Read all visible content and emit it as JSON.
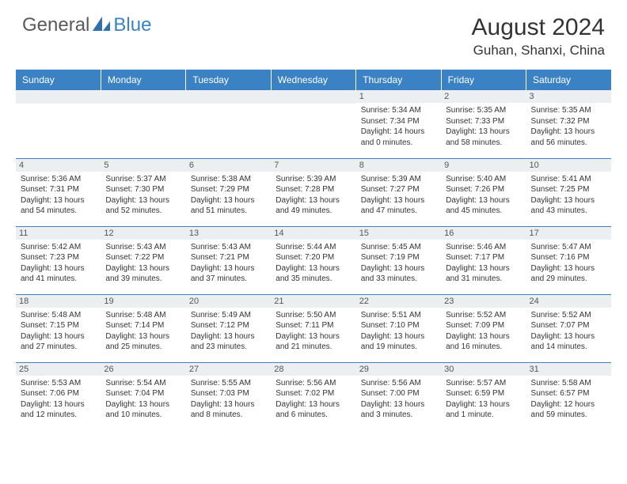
{
  "brand": {
    "general": "General",
    "blue": "Blue"
  },
  "title": "August 2024",
  "location": "Guhan, Shanxi, China",
  "header_bg": "#3b82c4",
  "weekdays": [
    "Sunday",
    "Monday",
    "Tuesday",
    "Wednesday",
    "Thursday",
    "Friday",
    "Saturday"
  ],
  "weeks": [
    [
      null,
      null,
      null,
      null,
      {
        "n": "1",
        "sr": "5:34 AM",
        "ss": "7:34 PM",
        "dl": "14 hours and 0 minutes."
      },
      {
        "n": "2",
        "sr": "5:35 AM",
        "ss": "7:33 PM",
        "dl": "13 hours and 58 minutes."
      },
      {
        "n": "3",
        "sr": "5:35 AM",
        "ss": "7:32 PM",
        "dl": "13 hours and 56 minutes."
      }
    ],
    [
      {
        "n": "4",
        "sr": "5:36 AM",
        "ss": "7:31 PM",
        "dl": "13 hours and 54 minutes."
      },
      {
        "n": "5",
        "sr": "5:37 AM",
        "ss": "7:30 PM",
        "dl": "13 hours and 52 minutes."
      },
      {
        "n": "6",
        "sr": "5:38 AM",
        "ss": "7:29 PM",
        "dl": "13 hours and 51 minutes."
      },
      {
        "n": "7",
        "sr": "5:39 AM",
        "ss": "7:28 PM",
        "dl": "13 hours and 49 minutes."
      },
      {
        "n": "8",
        "sr": "5:39 AM",
        "ss": "7:27 PM",
        "dl": "13 hours and 47 minutes."
      },
      {
        "n": "9",
        "sr": "5:40 AM",
        "ss": "7:26 PM",
        "dl": "13 hours and 45 minutes."
      },
      {
        "n": "10",
        "sr": "5:41 AM",
        "ss": "7:25 PM",
        "dl": "13 hours and 43 minutes."
      }
    ],
    [
      {
        "n": "11",
        "sr": "5:42 AM",
        "ss": "7:23 PM",
        "dl": "13 hours and 41 minutes."
      },
      {
        "n": "12",
        "sr": "5:43 AM",
        "ss": "7:22 PM",
        "dl": "13 hours and 39 minutes."
      },
      {
        "n": "13",
        "sr": "5:43 AM",
        "ss": "7:21 PM",
        "dl": "13 hours and 37 minutes."
      },
      {
        "n": "14",
        "sr": "5:44 AM",
        "ss": "7:20 PM",
        "dl": "13 hours and 35 minutes."
      },
      {
        "n": "15",
        "sr": "5:45 AM",
        "ss": "7:19 PM",
        "dl": "13 hours and 33 minutes."
      },
      {
        "n": "16",
        "sr": "5:46 AM",
        "ss": "7:17 PM",
        "dl": "13 hours and 31 minutes."
      },
      {
        "n": "17",
        "sr": "5:47 AM",
        "ss": "7:16 PM",
        "dl": "13 hours and 29 minutes."
      }
    ],
    [
      {
        "n": "18",
        "sr": "5:48 AM",
        "ss": "7:15 PM",
        "dl": "13 hours and 27 minutes."
      },
      {
        "n": "19",
        "sr": "5:48 AM",
        "ss": "7:14 PM",
        "dl": "13 hours and 25 minutes."
      },
      {
        "n": "20",
        "sr": "5:49 AM",
        "ss": "7:12 PM",
        "dl": "13 hours and 23 minutes."
      },
      {
        "n": "21",
        "sr": "5:50 AM",
        "ss": "7:11 PM",
        "dl": "13 hours and 21 minutes."
      },
      {
        "n": "22",
        "sr": "5:51 AM",
        "ss": "7:10 PM",
        "dl": "13 hours and 19 minutes."
      },
      {
        "n": "23",
        "sr": "5:52 AM",
        "ss": "7:09 PM",
        "dl": "13 hours and 16 minutes."
      },
      {
        "n": "24",
        "sr": "5:52 AM",
        "ss": "7:07 PM",
        "dl": "13 hours and 14 minutes."
      }
    ],
    [
      {
        "n": "25",
        "sr": "5:53 AM",
        "ss": "7:06 PM",
        "dl": "13 hours and 12 minutes."
      },
      {
        "n": "26",
        "sr": "5:54 AM",
        "ss": "7:04 PM",
        "dl": "13 hours and 10 minutes."
      },
      {
        "n": "27",
        "sr": "5:55 AM",
        "ss": "7:03 PM",
        "dl": "13 hours and 8 minutes."
      },
      {
        "n": "28",
        "sr": "5:56 AM",
        "ss": "7:02 PM",
        "dl": "13 hours and 6 minutes."
      },
      {
        "n": "29",
        "sr": "5:56 AM",
        "ss": "7:00 PM",
        "dl": "13 hours and 3 minutes."
      },
      {
        "n": "30",
        "sr": "5:57 AM",
        "ss": "6:59 PM",
        "dl": "13 hours and 1 minute."
      },
      {
        "n": "31",
        "sr": "5:58 AM",
        "ss": "6:57 PM",
        "dl": "12 hours and 59 minutes."
      }
    ]
  ],
  "labels": {
    "sunrise": "Sunrise:",
    "sunset": "Sunset:",
    "daylight": "Daylight:"
  }
}
